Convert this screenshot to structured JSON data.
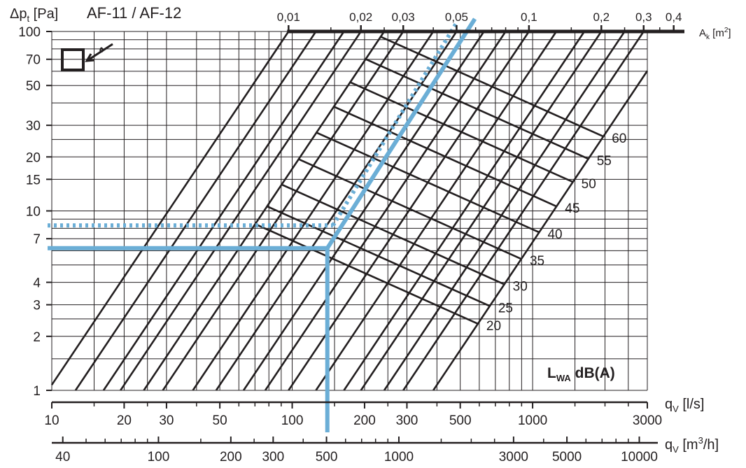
{
  "chart_data": {
    "type": "line",
    "title": "AF-11 / AF-12",
    "y_axis": {
      "label_main": "Δp",
      "label_sub": "t",
      "label_unit": " [Pa]",
      "scale": "log",
      "range": [
        1,
        100
      ],
      "ticks": [
        1,
        2,
        3,
        4,
        7,
        10,
        15,
        20,
        30,
        50,
        70,
        100
      ],
      "tick_labels": [
        "1",
        "2",
        "3",
        "4",
        "7",
        "10",
        "15",
        "20",
        "30",
        "50",
        "70",
        "100"
      ]
    },
    "x_axis_ls": {
      "label_main": "q",
      "label_sub": "V",
      "label_unit": " [l/s]",
      "scale": "log",
      "range": [
        10,
        3000
      ],
      "ticks": [
        10,
        20,
        30,
        50,
        100,
        200,
        300,
        500,
        1000,
        3000
      ],
      "tick_labels": [
        "10",
        "20",
        "30",
        "50",
        "100",
        "200",
        "300",
        "500",
        "1000",
        "3000"
      ]
    },
    "x_axis_m3h": {
      "label_main": "q",
      "label_sub": "V",
      "label_unit": " [m",
      "label_sup": "3",
      "label_unit_end": "/h]",
      "scale": "log",
      "range": [
        36,
        10800
      ],
      "ticks": [
        40,
        100,
        200,
        300,
        500,
        1000,
        3000,
        5000,
        10000
      ],
      "tick_labels": [
        "40",
        "100",
        "200",
        "300",
        "500",
        "1000",
        "3000",
        "5000",
        "10000"
      ]
    },
    "ak_axis": {
      "label_main": "A",
      "label_sub": "k",
      "label_unit": " [m",
      "label_sup": "2",
      "label_unit_end": "]",
      "scale": "log",
      "ticks": [
        0.01,
        0.02,
        0.03,
        0.05,
        0.1,
        0.2,
        0.3,
        0.4
      ],
      "tick_labels": [
        "0,01",
        "0,02",
        "0,03",
        "0,05",
        "0,1",
        "0,2",
        "0,3",
        "0,4"
      ]
    },
    "noise_levels": {
      "label_main": "L",
      "label_sub": "WA",
      "label_unit": " dB(A)",
      "values": [
        20,
        25,
        30,
        35,
        40,
        45,
        50,
        55,
        60
      ],
      "tick_labels": [
        "20",
        "25",
        "30",
        "35",
        "40",
        "45",
        "50",
        "55",
        "60"
      ]
    },
    "example": {
      "flow_ls": 140,
      "ak_solid": 0.058,
      "ak_dotted": 0.052,
      "dp_solid": 6.2,
      "dp_dotted": 8.3,
      "color": "#6baed6"
    },
    "grid": true
  }
}
